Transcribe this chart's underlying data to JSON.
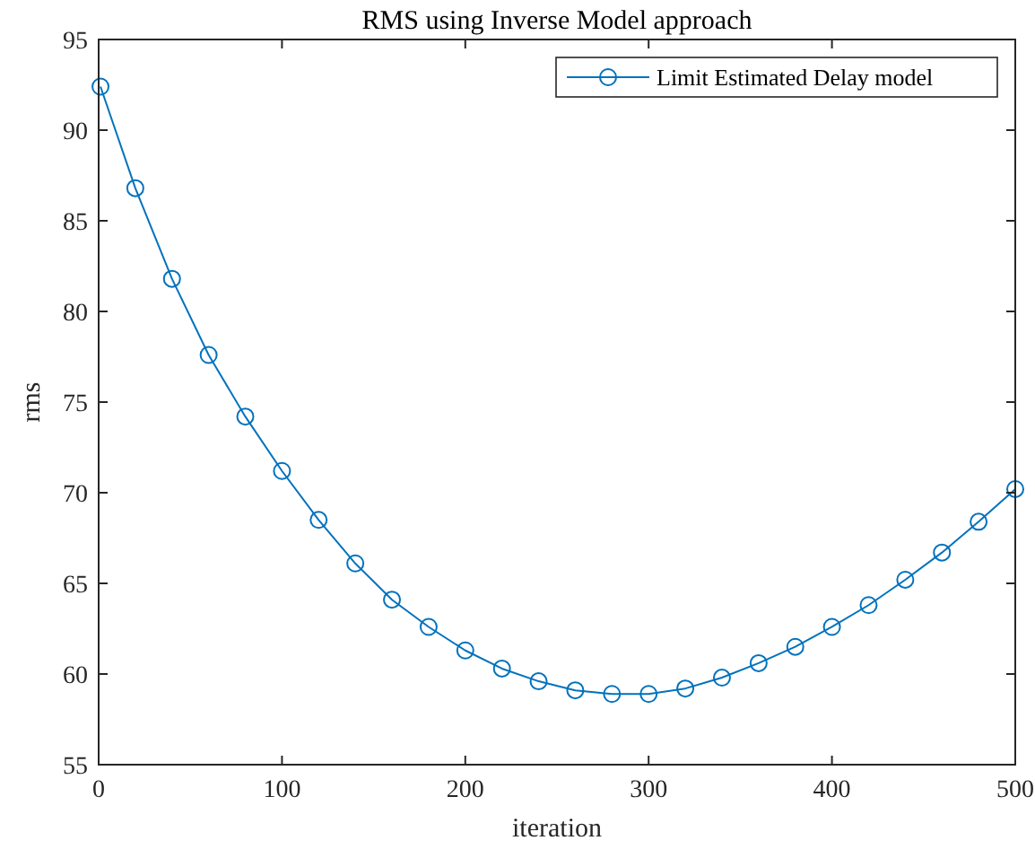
{
  "chart_data": {
    "type": "line",
    "title": "RMS using Inverse Model approach",
    "xlabel": "iteration",
    "ylabel": "rms",
    "x": [
      1,
      20,
      40,
      60,
      80,
      100,
      120,
      140,
      160,
      180,
      200,
      220,
      240,
      260,
      280,
      300,
      320,
      340,
      360,
      380,
      400,
      420,
      440,
      460,
      480,
      500
    ],
    "series": [
      {
        "name": "Limit Estimated Delay model",
        "color": "#0072bd",
        "values": [
          92.4,
          86.8,
          81.8,
          77.6,
          74.2,
          71.2,
          68.5,
          66.1,
          64.1,
          62.6,
          61.3,
          60.3,
          59.6,
          59.1,
          58.9,
          58.9,
          59.2,
          59.8,
          60.6,
          61.5,
          62.6,
          63.8,
          65.2,
          66.7,
          68.4,
          70.2
        ]
      }
    ],
    "xlim": [
      0,
      500
    ],
    "xticks": [
      0,
      100,
      200,
      300,
      400,
      500
    ],
    "ylim": [
      55,
      95
    ],
    "yticks": [
      55,
      60,
      65,
      70,
      75,
      80,
      85,
      90,
      95
    ],
    "marker": "circle",
    "line_style": "solid",
    "legend": "top right",
    "grid": false
  }
}
